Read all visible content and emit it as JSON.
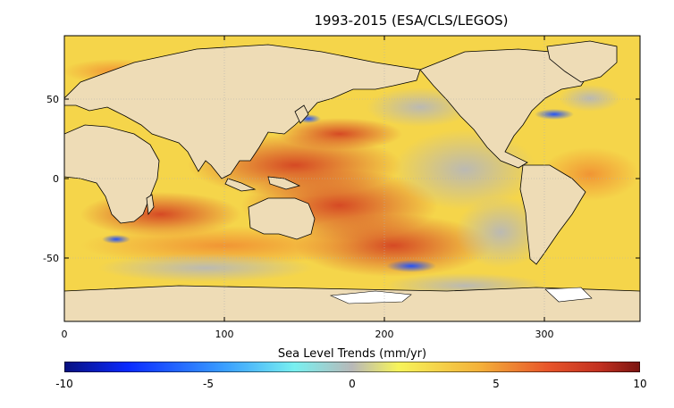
{
  "title": "1993-2015 (ESA/CLS/LEGOS)",
  "map": {
    "x_ticks": [
      "0",
      "100",
      "200",
      "300"
    ],
    "y_ticks": [
      "50",
      "0",
      "-50"
    ],
    "x_range": [
      0,
      360
    ],
    "y_range": [
      -90,
      90
    ],
    "colors": {
      "land": "#eedcb6",
      "antarctic_ice": "#ffffff",
      "coastline": "#000000",
      "grid": "#b0b0b0"
    }
  },
  "colorbar": {
    "label": "Sea Level Trends (mm/yr)",
    "ticks": [
      "-10",
      "-5",
      "0",
      "5",
      "10"
    ],
    "range": [
      -10,
      10
    ],
    "colors": [
      "#08107e",
      "#0a2aff",
      "#3aa0ff",
      "#78f0f0",
      "#b8b8b8",
      "#f6f45a",
      "#f4b23a",
      "#e8552a",
      "#c23020",
      "#7a1410"
    ]
  }
}
